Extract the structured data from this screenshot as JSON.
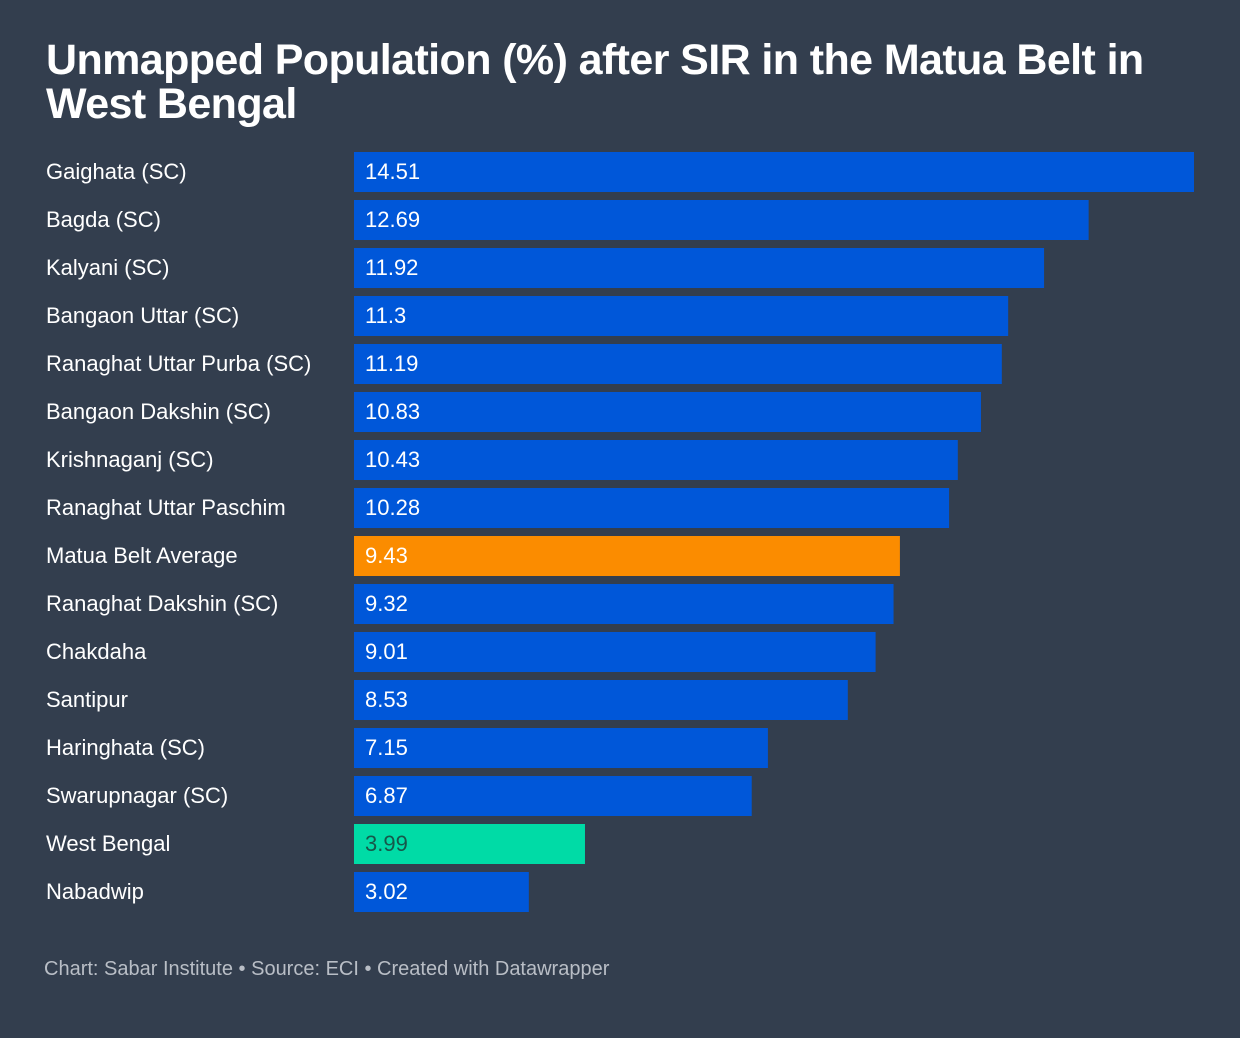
{
  "chart_data": {
    "type": "bar",
    "orientation": "horizontal",
    "title": "Unmapped Population (%) after SIR in the Matua Belt in West Bengal",
    "xlabel": "",
    "ylabel": "",
    "xlim": [
      0,
      14.51
    ],
    "grid": false,
    "legend": "none",
    "categories": [
      "Gaighata (SC)",
      "Bagda (SC)",
      "Kalyani (SC)",
      "Bangaon Uttar (SC)",
      "Ranaghat Uttar Purba (SC)",
      "Bangaon Dakshin (SC)",
      "Krishnaganj (SC)",
      "Ranaghat Uttar Paschim",
      "Matua Belt Average",
      "Ranaghat Dakshin (SC)",
      "Chakdaha",
      "Santipur",
      "Haringhata (SC)",
      "Swarupnagar (SC)",
      "West Bengal",
      "Nabadwip"
    ],
    "values": [
      14.51,
      12.69,
      11.92,
      11.3,
      11.19,
      10.83,
      10.43,
      10.28,
      9.43,
      9.32,
      9.01,
      8.53,
      7.15,
      6.87,
      3.99,
      3.02
    ],
    "value_labels": [
      "14.51",
      "12.69",
      "11.92",
      "11.3",
      "11.19",
      "10.83",
      "10.43",
      "10.28",
      "9.43",
      "9.32",
      "9.01",
      "8.53",
      "7.15",
      "6.87",
      "3.99",
      "3.02"
    ],
    "bar_colors": [
      "#0057d9",
      "#0057d9",
      "#0057d9",
      "#0057d9",
      "#0057d9",
      "#0057d9",
      "#0057d9",
      "#0057d9",
      "#fb8c00",
      "#0057d9",
      "#0057d9",
      "#0057d9",
      "#0057d9",
      "#0057d9",
      "#00dba6",
      "#0057d9"
    ],
    "label_colors": [
      "#ffffff",
      "#ffffff",
      "#ffffff",
      "#ffffff",
      "#ffffff",
      "#ffffff",
      "#ffffff",
      "#ffffff",
      "#ffffff",
      "#ffffff",
      "#ffffff",
      "#ffffff",
      "#ffffff",
      "#ffffff",
      "#16584a",
      "#ffffff"
    ]
  },
  "footer": "Chart: Sabar Institute • Source: ECI • Created with Datawrapper",
  "colors": {
    "background": "#333e4e",
    "default_bar": "#0057d9",
    "highlight_average": "#fb8c00",
    "highlight_state": "#00dba6"
  }
}
